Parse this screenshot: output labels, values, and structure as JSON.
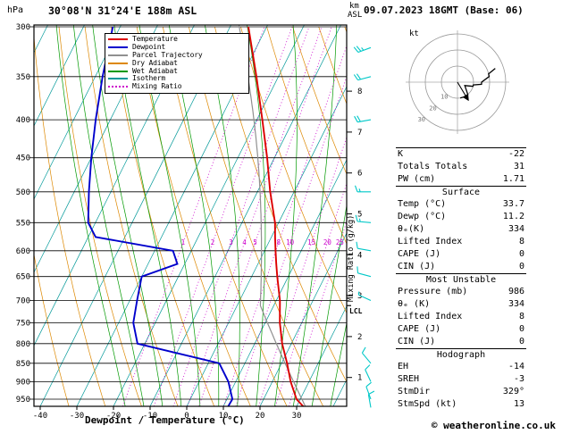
{
  "header": {
    "station": "30°08'N 31°24'E 188m ASL",
    "datetime": "09.07.2023 18GMT (Base: 06)"
  },
  "footer": {
    "watermark": "© weatheronline.co.uk"
  },
  "chart_data": {
    "type": "skew-t-log-p-sounding",
    "pressure_axis": {
      "unit": "hPa",
      "ticks": [
        300,
        350,
        400,
        450,
        500,
        550,
        600,
        650,
        700,
        750,
        800,
        850,
        900,
        950
      ]
    },
    "temp_axis": {
      "label": "Dewpoint / Temperature (°C)",
      "ticks": [
        -40,
        -30,
        -20,
        -10,
        0,
        10,
        20,
        30
      ]
    },
    "height_axis": {
      "unit_top": "km",
      "unit_bottom": "ASL",
      "ticks_km": [
        1,
        2,
        3,
        4,
        5,
        6,
        7,
        8
      ]
    },
    "mixing_axis": {
      "label": "Mixing Ratio (g/kg)",
      "lines_g_per_kg": [
        1,
        2,
        3,
        4,
        5,
        8,
        10,
        15,
        20,
        25
      ]
    },
    "lcl_label": "LCL",
    "legend": [
      {
        "label": "Temperature",
        "color": "#dd0000",
        "style": "solid"
      },
      {
        "label": "Dewpoint",
        "color": "#0000cc",
        "style": "solid"
      },
      {
        "label": "Parcel Trajectory",
        "color": "#909090",
        "style": "solid"
      },
      {
        "label": "Dry Adiabat",
        "color": "#dd8800",
        "style": "solid"
      },
      {
        "label": "Wet Adiabat",
        "color": "#009900",
        "style": "solid"
      },
      {
        "label": "Isotherm",
        "color": "#009999",
        "style": "solid"
      },
      {
        "label": "Mixing Ratio",
        "color": "#cc00cc",
        "style": "dotted"
      }
    ],
    "colors": {
      "temperature": "#dd0000",
      "dewpoint": "#0000cc",
      "parcel": "#909090",
      "dry_adiabat": "#dd8800",
      "wet_adiabat": "#009900",
      "isotherm": "#009999",
      "mixing": "#cc00cc",
      "wind_barb": "#00c8c8",
      "grid": "#000000"
    },
    "sounding": {
      "columns": [
        "pressure_hPa",
        "temperature_C",
        "dewpoint_C"
      ],
      "rows": [
        [
          986,
          33.7,
          11.2
        ],
        [
          950,
          29.0,
          11.5
        ],
        [
          900,
          25.0,
          8.0
        ],
        [
          850,
          21.5,
          3.0
        ],
        [
          800,
          17.5,
          -22.0
        ],
        [
          750,
          14.0,
          -26.0
        ],
        [
          700,
          11.0,
          -28.0
        ],
        [
          650,
          7.0,
          -30.0
        ],
        [
          625,
          5.0,
          -22.0
        ],
        [
          600,
          3.0,
          -25.0
        ],
        [
          575,
          1.0,
          -48.0
        ],
        [
          550,
          -1.0,
          -52.0
        ],
        [
          500,
          -6.5,
          -56.0
        ],
        [
          450,
          -12.0,
          -60.0
        ],
        [
          400,
          -18.5,
          -64.0
        ],
        [
          350,
          -26.0,
          -68.0
        ],
        [
          300,
          -35.0,
          -72.0
        ]
      ]
    },
    "surface_parcel": {
      "pressure_hPa": 986,
      "temperature_C": 33.7,
      "dewpoint_C": 11.2
    },
    "wind_barbs": [
      {
        "p": 975,
        "dir": 350,
        "spd": 10
      },
      {
        "p": 950,
        "dir": 340,
        "spd": 10
      },
      {
        "p": 900,
        "dir": 335,
        "spd": 10
      },
      {
        "p": 850,
        "dir": 320,
        "spd": 10
      },
      {
        "p": 700,
        "dir": 295,
        "spd": 5
      },
      {
        "p": 650,
        "dir": 285,
        "spd": 10
      },
      {
        "p": 600,
        "dir": 280,
        "spd": 10
      },
      {
        "p": 550,
        "dir": 275,
        "spd": 15
      },
      {
        "p": 500,
        "dir": 270,
        "spd": 15
      },
      {
        "p": 400,
        "dir": 260,
        "spd": 20
      },
      {
        "p": 350,
        "dir": 255,
        "spd": 20
      },
      {
        "p": 320,
        "dir": 250,
        "spd": 25
      }
    ],
    "hodograph": {
      "unit": "kt",
      "rings_kt": [
        10,
        20,
        30
      ],
      "ring_labels": [
        "10",
        "20",
        "30"
      ],
      "storm_dir_deg": 329,
      "storm_speed_kt": 13
    }
  },
  "indices": {
    "top": [
      [
        "K",
        "-22"
      ],
      [
        "Totals Totals",
        "31"
      ],
      [
        "PW (cm)",
        "1.71"
      ]
    ],
    "sections": [
      {
        "title": "Surface",
        "rows": [
          [
            "Temp (°C)",
            "33.7"
          ],
          [
            "Dewp (°C)",
            "11.2"
          ],
          [
            "θₑ(K)",
            "334"
          ],
          [
            "Lifted Index",
            "8"
          ],
          [
            "CAPE (J)",
            "0"
          ],
          [
            "CIN (J)",
            "0"
          ]
        ]
      },
      {
        "title": "Most Unstable",
        "rows": [
          [
            "Pressure (mb)",
            "986"
          ],
          [
            "θₑ (K)",
            "334"
          ],
          [
            "Lifted Index",
            "8"
          ],
          [
            "CAPE (J)",
            "0"
          ],
          [
            "CIN (J)",
            "0"
          ]
        ]
      },
      {
        "title": "Hodograph",
        "rows": [
          [
            "EH",
            "-14"
          ],
          [
            "SREH",
            "-3"
          ],
          [
            "StmDir",
            "329°"
          ],
          [
            "StmSpd (kt)",
            "13"
          ]
        ]
      }
    ]
  }
}
